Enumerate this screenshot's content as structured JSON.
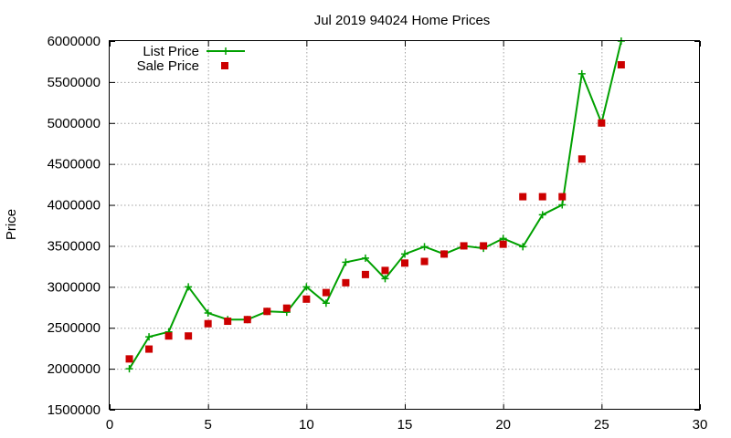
{
  "chart_data": {
    "type": "line",
    "title": "Jul 2019 94024 Home Prices",
    "xlabel": "",
    "ylabel": "Price",
    "xlim": [
      0,
      30
    ],
    "ylim": [
      1500000,
      6000000
    ],
    "xticks": [
      0,
      5,
      10,
      15,
      20,
      25,
      30
    ],
    "yticks": [
      1500000,
      2000000,
      2500000,
      3000000,
      3500000,
      4000000,
      4500000,
      5000000,
      5500000,
      6000000
    ],
    "grid": true,
    "legend_position": "top-left",
    "series": [
      {
        "name": "List Price",
        "style": "line-with-plus-markers",
        "color": "#00a000",
        "x": [
          1,
          2,
          3,
          4,
          5,
          6,
          7,
          8,
          9,
          10,
          11,
          12,
          13,
          14,
          15,
          16,
          17,
          18,
          19,
          20,
          21,
          22,
          23,
          24,
          25,
          26
        ],
        "y": [
          2000000,
          2390000,
          2450000,
          3000000,
          2680000,
          2600000,
          2600000,
          2700000,
          2690000,
          3000000,
          2800000,
          3300000,
          3350000,
          3100000,
          3400000,
          3490000,
          3400000,
          3500000,
          3470000,
          3590000,
          3490000,
          3880000,
          4000000,
          5600000,
          5000000,
          6000000
        ]
      },
      {
        "name": "Sale Price",
        "style": "square-markers",
        "color": "#cc0000",
        "x": [
          1,
          2,
          3,
          4,
          5,
          6,
          7,
          8,
          9,
          10,
          11,
          12,
          13,
          14,
          15,
          16,
          17,
          18,
          19,
          20,
          21,
          22,
          23,
          24,
          25,
          26
        ],
        "y": [
          2120000,
          2240000,
          2400000,
          2400000,
          2550000,
          2580000,
          2600000,
          2700000,
          2740000,
          2850000,
          2930000,
          3050000,
          3150000,
          3200000,
          3290000,
          3310000,
          3400000,
          3500000,
          3500000,
          3520000,
          4100000,
          4100000,
          4100000,
          4560000,
          5000000,
          5710000
        ]
      }
    ]
  }
}
